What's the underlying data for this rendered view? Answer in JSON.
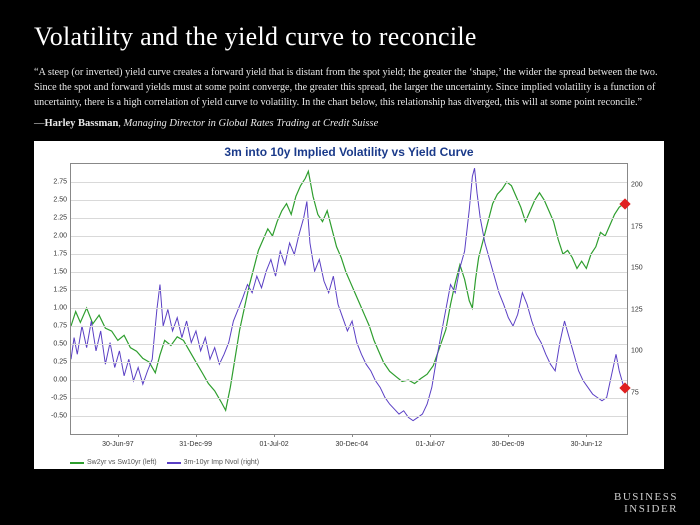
{
  "slide": {
    "background": "#000000",
    "title": "Volatility and the yield curve to reconcile",
    "title_fontsize": 26,
    "title_color": "#ffffff",
    "quote": "“A steep (or inverted) yield curve creates a forward yield that is distant from the spot yield; the greater the ‘shape,’ the wider the spread between the two. Since the spot and forward yields must at some point converge, the greater this spread, the larger the uncertainty. Since implied volatility is a function of uncertainty, there is a high correlation of yield curve to volatility. In the chart below, this relationship has diverged, this will at some point reconcile.”",
    "quote_fontsize": 10.2,
    "attribution_prefix": "—",
    "attribution_name": "Harley Bassman",
    "attribution_role": ", Managing Director in Global Rates Trading at Credit Suisse",
    "brand_line1": "BUSINESS",
    "brand_line2": "INSIDER"
  },
  "chart": {
    "type": "line",
    "title": "3m into 10y Implied Volatility vs Yield Curve",
    "title_color": "#1a3a8a",
    "title_fontsize": 12,
    "background_color": "#ffffff",
    "plot_border_color": "#888888",
    "grid_color": "#d9d9d9",
    "x_axis": {
      "range": [
        1996.0,
        2013.8
      ],
      "ticks": [
        {
          "pos": 1997.5,
          "label": "30-Jun-97"
        },
        {
          "pos": 1999.99,
          "label": "31-Dec-99"
        },
        {
          "pos": 2002.5,
          "label": "01-Jul-02"
        },
        {
          "pos": 2004.99,
          "label": "30-Dec-04"
        },
        {
          "pos": 2007.5,
          "label": "01-Jul-07"
        },
        {
          "pos": 2009.99,
          "label": "30-Dec-09"
        },
        {
          "pos": 2012.5,
          "label": "30-Jun-12"
        }
      ],
      "tick_fontsize": 7
    },
    "y_left": {
      "range": [
        -0.75,
        3.0
      ],
      "ticks": [
        -0.5,
        -0.25,
        0.0,
        0.25,
        0.5,
        0.75,
        1.0,
        1.25,
        1.5,
        1.75,
        2.0,
        2.25,
        2.5,
        2.75
      ],
      "tick_fontsize": 7
    },
    "y_right": {
      "range": [
        50,
        212.5
      ],
      "ticks": [
        75,
        100,
        125,
        150,
        175,
        200
      ],
      "tick_fontsize": 7
    },
    "series": [
      {
        "name": "Sw2yr vs Sw10yr (left)",
        "color": "#2e9e2e",
        "line_width": 1.2,
        "axis": "left",
        "data": [
          [
            1996.0,
            0.75
          ],
          [
            1996.15,
            0.95
          ],
          [
            1996.3,
            0.8
          ],
          [
            1996.5,
            1.0
          ],
          [
            1996.7,
            0.78
          ],
          [
            1996.9,
            0.9
          ],
          [
            1997.1,
            0.72
          ],
          [
            1997.3,
            0.68
          ],
          [
            1997.5,
            0.55
          ],
          [
            1997.7,
            0.62
          ],
          [
            1997.9,
            0.45
          ],
          [
            1998.1,
            0.4
          ],
          [
            1998.3,
            0.3
          ],
          [
            1998.5,
            0.25
          ],
          [
            1998.7,
            0.1
          ],
          [
            1998.85,
            0.35
          ],
          [
            1999.0,
            0.55
          ],
          [
            1999.2,
            0.48
          ],
          [
            1999.4,
            0.6
          ],
          [
            1999.6,
            0.55
          ],
          [
            1999.8,
            0.4
          ],
          [
            2000.0,
            0.25
          ],
          [
            2000.2,
            0.1
          ],
          [
            2000.4,
            -0.05
          ],
          [
            2000.6,
            -0.15
          ],
          [
            2000.8,
            -0.3
          ],
          [
            2000.95,
            -0.42
          ],
          [
            2001.1,
            -0.1
          ],
          [
            2001.25,
            0.3
          ],
          [
            2001.4,
            0.7
          ],
          [
            2001.55,
            1.0
          ],
          [
            2001.7,
            1.3
          ],
          [
            2001.85,
            1.55
          ],
          [
            2002.0,
            1.8
          ],
          [
            2002.15,
            1.95
          ],
          [
            2002.3,
            2.1
          ],
          [
            2002.45,
            2.0
          ],
          [
            2002.6,
            2.2
          ],
          [
            2002.75,
            2.35
          ],
          [
            2002.9,
            2.45
          ],
          [
            2003.05,
            2.3
          ],
          [
            2003.2,
            2.55
          ],
          [
            2003.35,
            2.7
          ],
          [
            2003.5,
            2.8
          ],
          [
            2003.6,
            2.9
          ],
          [
            2003.75,
            2.55
          ],
          [
            2003.9,
            2.3
          ],
          [
            2004.05,
            2.2
          ],
          [
            2004.2,
            2.35
          ],
          [
            2004.35,
            2.1
          ],
          [
            2004.5,
            1.85
          ],
          [
            2004.65,
            1.7
          ],
          [
            2004.8,
            1.5
          ],
          [
            2004.95,
            1.35
          ],
          [
            2005.1,
            1.2
          ],
          [
            2005.25,
            1.05
          ],
          [
            2005.4,
            0.9
          ],
          [
            2005.55,
            0.75
          ],
          [
            2005.7,
            0.55
          ],
          [
            2005.85,
            0.4
          ],
          [
            2006.0,
            0.25
          ],
          [
            2006.2,
            0.12
          ],
          [
            2006.4,
            0.05
          ],
          [
            2006.6,
            -0.02
          ],
          [
            2006.8,
            0.0
          ],
          [
            2007.0,
            -0.05
          ],
          [
            2007.2,
            0.02
          ],
          [
            2007.4,
            0.08
          ],
          [
            2007.6,
            0.2
          ],
          [
            2007.8,
            0.45
          ],
          [
            2008.0,
            0.7
          ],
          [
            2008.15,
            1.05
          ],
          [
            2008.3,
            1.35
          ],
          [
            2008.45,
            1.6
          ],
          [
            2008.6,
            1.4
          ],
          [
            2008.75,
            1.1
          ],
          [
            2008.85,
            1.0
          ],
          [
            2008.95,
            1.4
          ],
          [
            2009.05,
            1.7
          ],
          [
            2009.2,
            1.95
          ],
          [
            2009.35,
            2.2
          ],
          [
            2009.5,
            2.45
          ],
          [
            2009.65,
            2.58
          ],
          [
            2009.8,
            2.65
          ],
          [
            2009.95,
            2.75
          ],
          [
            2010.1,
            2.7
          ],
          [
            2010.25,
            2.55
          ],
          [
            2010.4,
            2.4
          ],
          [
            2010.55,
            2.2
          ],
          [
            2010.7,
            2.35
          ],
          [
            2010.85,
            2.5
          ],
          [
            2011.0,
            2.6
          ],
          [
            2011.15,
            2.5
          ],
          [
            2011.3,
            2.35
          ],
          [
            2011.45,
            2.2
          ],
          [
            2011.6,
            1.95
          ],
          [
            2011.75,
            1.75
          ],
          [
            2011.9,
            1.8
          ],
          [
            2012.05,
            1.7
          ],
          [
            2012.2,
            1.55
          ],
          [
            2012.35,
            1.65
          ],
          [
            2012.5,
            1.55
          ],
          [
            2012.65,
            1.75
          ],
          [
            2012.8,
            1.85
          ],
          [
            2012.95,
            2.05
          ],
          [
            2013.1,
            2.0
          ],
          [
            2013.25,
            2.15
          ],
          [
            2013.4,
            2.3
          ],
          [
            2013.55,
            2.4
          ],
          [
            2013.7,
            2.45
          ]
        ],
        "end_marker": {
          "x": 2013.72,
          "y": 2.45,
          "color": "#e02020",
          "shape": "diamond",
          "size": 8
        }
      },
      {
        "name": "3m-10yr Imp Nvol (right)",
        "color": "#5a3fc4",
        "line_width": 1.0,
        "axis": "right",
        "data": [
          [
            1996.0,
            95
          ],
          [
            1996.1,
            108
          ],
          [
            1996.2,
            98
          ],
          [
            1996.35,
            115
          ],
          [
            1996.5,
            102
          ],
          [
            1996.65,
            118
          ],
          [
            1996.8,
            100
          ],
          [
            1996.95,
            112
          ],
          [
            1997.1,
            92
          ],
          [
            1997.25,
            105
          ],
          [
            1997.4,
            90
          ],
          [
            1997.55,
            100
          ],
          [
            1997.7,
            85
          ],
          [
            1997.85,
            95
          ],
          [
            1998.0,
            82
          ],
          [
            1998.15,
            90
          ],
          [
            1998.3,
            80
          ],
          [
            1998.45,
            88
          ],
          [
            1998.6,
            95
          ],
          [
            1998.75,
            125
          ],
          [
            1998.85,
            140
          ],
          [
            1998.95,
            115
          ],
          [
            1999.1,
            125
          ],
          [
            1999.25,
            112
          ],
          [
            1999.4,
            120
          ],
          [
            1999.55,
            108
          ],
          [
            1999.7,
            118
          ],
          [
            1999.85,
            105
          ],
          [
            2000.0,
            112
          ],
          [
            2000.15,
            100
          ],
          [
            2000.3,
            108
          ],
          [
            2000.45,
            95
          ],
          [
            2000.6,
            102
          ],
          [
            2000.75,
            92
          ],
          [
            2000.9,
            98
          ],
          [
            2001.05,
            105
          ],
          [
            2001.2,
            118
          ],
          [
            2001.35,
            125
          ],
          [
            2001.5,
            132
          ],
          [
            2001.65,
            140
          ],
          [
            2001.8,
            135
          ],
          [
            2001.95,
            145
          ],
          [
            2002.1,
            138
          ],
          [
            2002.25,
            148
          ],
          [
            2002.4,
            155
          ],
          [
            2002.55,
            145
          ],
          [
            2002.7,
            160
          ],
          [
            2002.85,
            152
          ],
          [
            2003.0,
            165
          ],
          [
            2003.15,
            158
          ],
          [
            2003.3,
            170
          ],
          [
            2003.45,
            180
          ],
          [
            2003.55,
            190
          ],
          [
            2003.65,
            165
          ],
          [
            2003.8,
            148
          ],
          [
            2003.95,
            155
          ],
          [
            2004.1,
            142
          ],
          [
            2004.25,
            135
          ],
          [
            2004.4,
            145
          ],
          [
            2004.55,
            128
          ],
          [
            2004.7,
            120
          ],
          [
            2004.85,
            112
          ],
          [
            2005.0,
            118
          ],
          [
            2005.15,
            105
          ],
          [
            2005.3,
            98
          ],
          [
            2005.45,
            92
          ],
          [
            2005.6,
            88
          ],
          [
            2005.75,
            82
          ],
          [
            2005.9,
            78
          ],
          [
            2006.05,
            72
          ],
          [
            2006.2,
            68
          ],
          [
            2006.35,
            65
          ],
          [
            2006.5,
            62
          ],
          [
            2006.65,
            64
          ],
          [
            2006.8,
            60
          ],
          [
            2006.95,
            58
          ],
          [
            2007.1,
            60
          ],
          [
            2007.25,
            62
          ],
          [
            2007.4,
            68
          ],
          [
            2007.55,
            78
          ],
          [
            2007.7,
            95
          ],
          [
            2007.85,
            110
          ],
          [
            2008.0,
            125
          ],
          [
            2008.15,
            140
          ],
          [
            2008.3,
            135
          ],
          [
            2008.45,
            150
          ],
          [
            2008.6,
            160
          ],
          [
            2008.75,
            185
          ],
          [
            2008.85,
            205
          ],
          [
            2008.92,
            210
          ],
          [
            2009.0,
            195
          ],
          [
            2009.1,
            180
          ],
          [
            2009.25,
            165
          ],
          [
            2009.4,
            155
          ],
          [
            2009.55,
            145
          ],
          [
            2009.7,
            135
          ],
          [
            2009.85,
            128
          ],
          [
            2010.0,
            120
          ],
          [
            2010.15,
            115
          ],
          [
            2010.3,
            122
          ],
          [
            2010.45,
            135
          ],
          [
            2010.6,
            128
          ],
          [
            2010.75,
            118
          ],
          [
            2010.9,
            110
          ],
          [
            2011.05,
            105
          ],
          [
            2011.2,
            98
          ],
          [
            2011.35,
            92
          ],
          [
            2011.5,
            88
          ],
          [
            2011.65,
            105
          ],
          [
            2011.8,
            118
          ],
          [
            2011.95,
            108
          ],
          [
            2012.1,
            98
          ],
          [
            2012.25,
            88
          ],
          [
            2012.4,
            82
          ],
          [
            2012.55,
            78
          ],
          [
            2012.7,
            74
          ],
          [
            2012.85,
            72
          ],
          [
            2013.0,
            70
          ],
          [
            2013.15,
            72
          ],
          [
            2013.3,
            85
          ],
          [
            2013.45,
            98
          ],
          [
            2013.55,
            88
          ],
          [
            2013.7,
            78
          ]
        ],
        "end_marker": {
          "x": 2013.72,
          "y": 78,
          "color": "#e02020",
          "shape": "diamond",
          "size": 8
        }
      }
    ],
    "legend": {
      "items": [
        {
          "label": "Sw2yr vs Sw10yr (left)",
          "color": "#2e9e2e"
        },
        {
          "label": "3m-10yr Imp Nvol (right)",
          "color": "#5a3fc4"
        }
      ],
      "fontsize": 7,
      "position": "bottom-left"
    }
  }
}
